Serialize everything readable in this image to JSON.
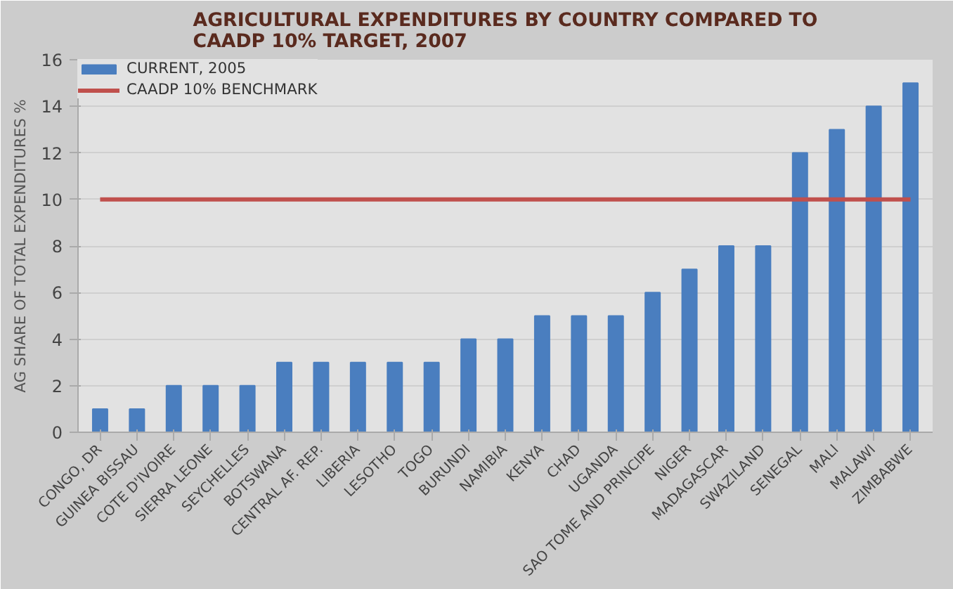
{
  "chart_data": {
    "type": "bar",
    "title": "AGRICULTURAL EXPENDITURES BY COUNTRY COMPARED TO\nCAADP 10% TARGET, 2007",
    "ylabel": "AG SHARE OF TOTAL EXPENDITURES %",
    "categories": [
      "CONGO, DR",
      "GUINEA BISSAU",
      "COTE D'IVOIRE",
      "SIERRA LEONE",
      "SEYCHELLES",
      "BOTSWANA",
      "CENTRAL AF. REP.",
      "LIBERIA",
      "LESOTHO",
      "TOGO",
      "BURUNDI",
      "NAMIBIA",
      "KENYA",
      "CHAD",
      "UGANDA",
      "SAO TOME AND PRINCIPE",
      "NIGER",
      "MADAGASCAR",
      "SWAZILAND",
      "SENEGAL",
      "MALI",
      "MALAWI",
      "ZIMBABWE"
    ],
    "series": [
      {
        "name": "CURRENT, 2005",
        "color": "#4a7ebf",
        "values": [
          1,
          1,
          2,
          2,
          2,
          3,
          3,
          3,
          3,
          3,
          4,
          4,
          5,
          5,
          5,
          6,
          7,
          8,
          8,
          12,
          13,
          14,
          15
        ]
      },
      {
        "name": "CAADP 10% BENCHMARK",
        "type": "line",
        "color": "#c0504d",
        "values": [
          10,
          10,
          10,
          10,
          10,
          10,
          10,
          10,
          10,
          10,
          10,
          10,
          10,
          10,
          10,
          10,
          10,
          10,
          10,
          10,
          10,
          10,
          10
        ]
      }
    ],
    "ylim": [
      0,
      16
    ],
    "yticks": [
      0,
      2,
      4,
      6,
      8,
      10,
      12,
      14,
      16
    ],
    "grid": "y",
    "legend": "top left"
  }
}
